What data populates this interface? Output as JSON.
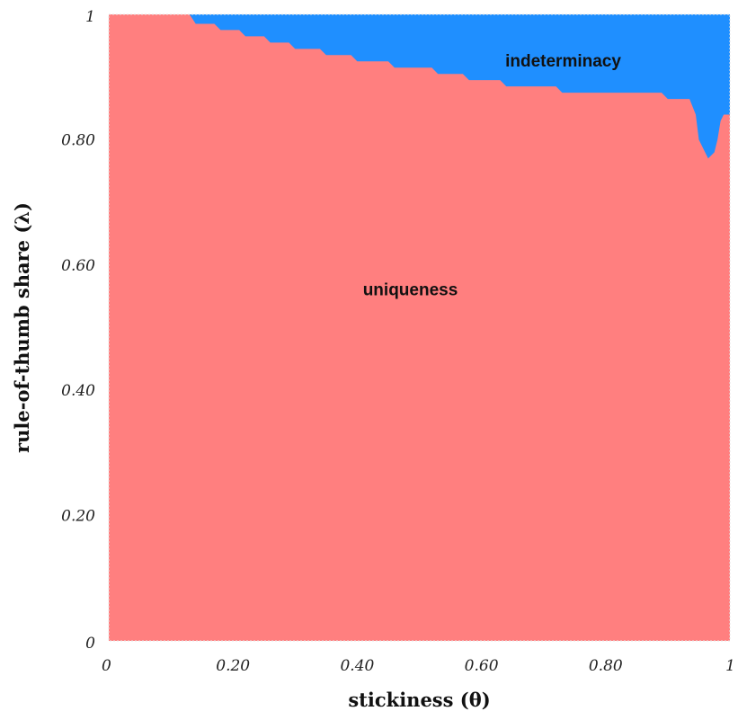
{
  "chart_data": {
    "type": "heatmap",
    "title": "",
    "xlabel": "stickiness (θ)",
    "ylabel": "rule-of-thumb share (λ)",
    "xlim": [
      0,
      1
    ],
    "ylim": [
      0,
      1
    ],
    "x_ticks": [
      {
        "value": 0,
        "label": "0"
      },
      {
        "value": 0.2,
        "label": "0.20"
      },
      {
        "value": 0.4,
        "label": "0.40"
      },
      {
        "value": 0.6,
        "label": "0.60"
      },
      {
        "value": 0.8,
        "label": "0.80"
      },
      {
        "value": 1,
        "label": "1"
      }
    ],
    "y_ticks": [
      {
        "value": 0,
        "label": "0"
      },
      {
        "value": 0.2,
        "label": "0.20"
      },
      {
        "value": 0.4,
        "label": "0.40"
      },
      {
        "value": 0.6,
        "label": "0.60"
      },
      {
        "value": 0.8,
        "label": "0.80"
      },
      {
        "value": 1,
        "label": "1"
      }
    ],
    "regions": [
      {
        "name": "uniqueness",
        "color": "#ff7f7f",
        "label_at": [
          0.5,
          0.56
        ]
      },
      {
        "name": "indeterminacy",
        "color": "#1f8fff",
        "label_at": [
          0.72,
          0.92
        ]
      }
    ],
    "boundary": [
      [
        0.0,
        1.0
      ],
      [
        0.13,
        1.0
      ],
      [
        0.14,
        0.985
      ],
      [
        0.17,
        0.985
      ],
      [
        0.18,
        0.975
      ],
      [
        0.21,
        0.975
      ],
      [
        0.22,
        0.965
      ],
      [
        0.25,
        0.965
      ],
      [
        0.26,
        0.955
      ],
      [
        0.29,
        0.955
      ],
      [
        0.3,
        0.945
      ],
      [
        0.34,
        0.945
      ],
      [
        0.35,
        0.935
      ],
      [
        0.39,
        0.935
      ],
      [
        0.4,
        0.925
      ],
      [
        0.45,
        0.925
      ],
      [
        0.46,
        0.915
      ],
      [
        0.52,
        0.915
      ],
      [
        0.53,
        0.905
      ],
      [
        0.57,
        0.905
      ],
      [
        0.58,
        0.895
      ],
      [
        0.63,
        0.895
      ],
      [
        0.64,
        0.885
      ],
      [
        0.72,
        0.885
      ],
      [
        0.73,
        0.875
      ],
      [
        0.89,
        0.875
      ],
      [
        0.9,
        0.865
      ],
      [
        0.935,
        0.865
      ],
      [
        0.945,
        0.84
      ],
      [
        0.95,
        0.8
      ],
      [
        0.96,
        0.78
      ],
      [
        0.965,
        0.77
      ],
      [
        0.975,
        0.78
      ],
      [
        0.98,
        0.8
      ],
      [
        0.985,
        0.83
      ],
      [
        0.99,
        0.84
      ],
      [
        1.0,
        0.84
      ]
    ],
    "grid": false,
    "legend": "none"
  }
}
